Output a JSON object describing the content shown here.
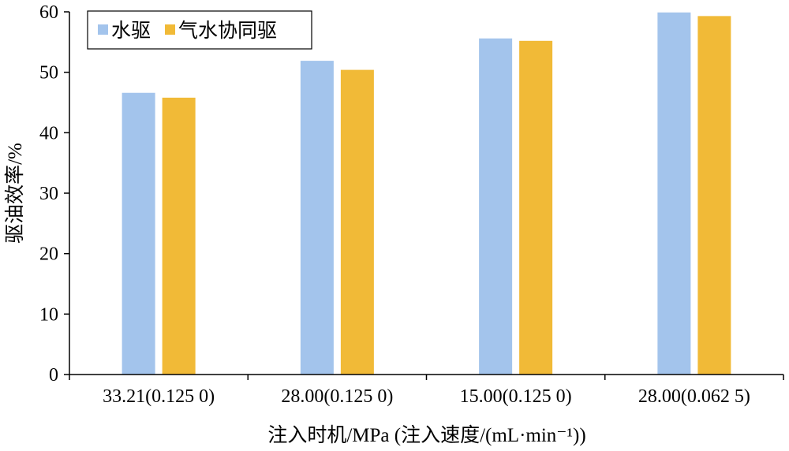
{
  "chart_data": {
    "type": "bar",
    "title": "",
    "xlabel": "注入时机/MPa (注入速度/(mL·min⁻¹))",
    "ylabel": "驱油效率/%",
    "categories": [
      "33.21(0.125 0)",
      "28.00(0.125 0)",
      "15.00(0.125 0)",
      "28.00(0.062 5)"
    ],
    "series": [
      {
        "name": "水驱",
        "color": "#a3c4ec",
        "values": [
          46.6,
          51.9,
          55.6,
          59.9
        ]
      },
      {
        "name": "气水协同驱",
        "color": "#f1ba37",
        "values": [
          45.8,
          50.4,
          55.2,
          59.3
        ]
      }
    ],
    "ylim": [
      0,
      60
    ],
    "yticks": [
      0,
      10,
      20,
      30,
      40,
      50,
      60
    ],
    "grid": false,
    "legend_position": "top-left"
  }
}
